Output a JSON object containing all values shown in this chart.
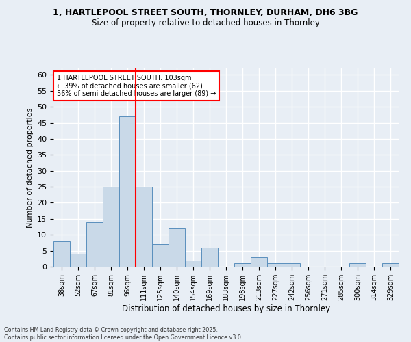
{
  "title1": "1, HARTLEPOOL STREET SOUTH, THORNLEY, DURHAM, DH6 3BG",
  "title2": "Size of property relative to detached houses in Thornley",
  "xlabel": "Distribution of detached houses by size in Thornley",
  "ylabel": "Number of detached properties",
  "categories": [
    "38sqm",
    "52sqm",
    "67sqm",
    "81sqm",
    "96sqm",
    "111sqm",
    "125sqm",
    "140sqm",
    "154sqm",
    "169sqm",
    "183sqm",
    "198sqm",
    "213sqm",
    "227sqm",
    "242sqm",
    "256sqm",
    "271sqm",
    "285sqm",
    "300sqm",
    "314sqm",
    "329sqm"
  ],
  "values": [
    8,
    4,
    14,
    25,
    47,
    25,
    7,
    12,
    2,
    6,
    0,
    1,
    3,
    1,
    1,
    0,
    0,
    0,
    1,
    0,
    1
  ],
  "bar_color": "#c9d9e8",
  "bar_edge_color": "#5a8fbd",
  "bar_edge_width": 0.7,
  "vline_x_index": 4.5,
  "vline_color": "red",
  "vline_lw": 1.5,
  "annotation_text": "1 HARTLEPOOL STREET SOUTH: 103sqm\n← 39% of detached houses are smaller (62)\n56% of semi-detached houses are larger (89) →",
  "annotation_box_color": "white",
  "annotation_box_edge": "red",
  "ylim": [
    0,
    62
  ],
  "background_color": "#e8eef5",
  "grid_color": "white",
  "footer": "Contains HM Land Registry data © Crown copyright and database right 2025.\nContains public sector information licensed under the Open Government Licence v3.0."
}
